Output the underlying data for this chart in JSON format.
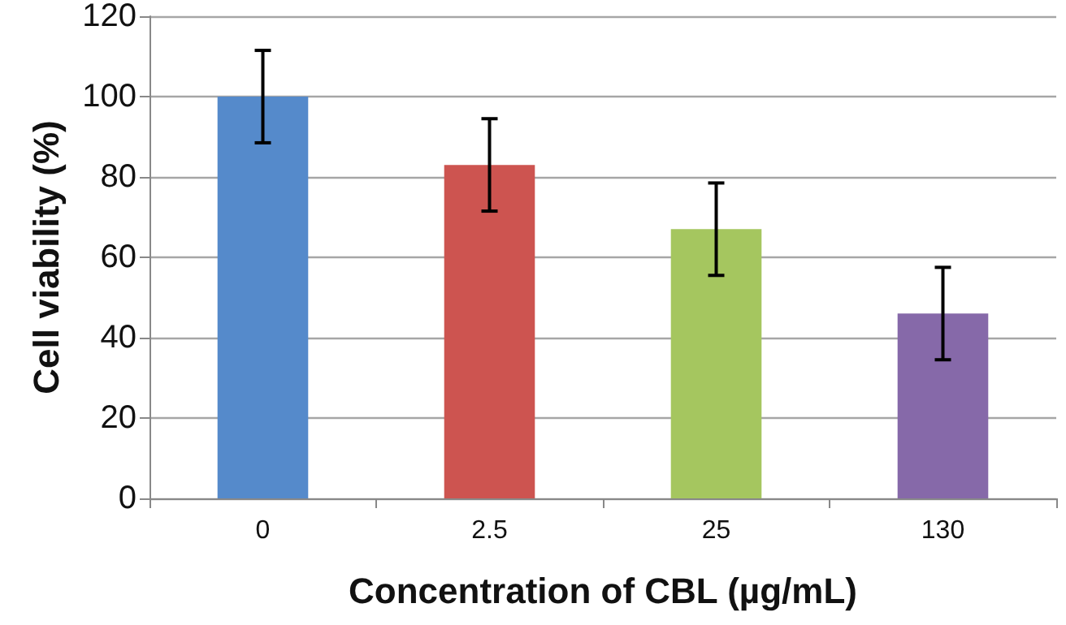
{
  "chart_data": {
    "type": "bar",
    "xlabel": "Concentration of CBL (µg/mL)",
    "ylabel": "Cell viability (%)",
    "categories": [
      "0",
      "2.5",
      "25",
      "130"
    ],
    "values": [
      100,
      83,
      67,
      46
    ],
    "colors": [
      "#558acb",
      "#cd5450",
      "#a5c65f",
      "#8669a9"
    ],
    "errors": [
      11.5,
      11.5,
      11.5,
      11.5
    ],
    "ylim": [
      0,
      120
    ],
    "yticks": [
      0,
      20,
      40,
      60,
      80,
      100,
      120
    ],
    "grid": "y"
  }
}
